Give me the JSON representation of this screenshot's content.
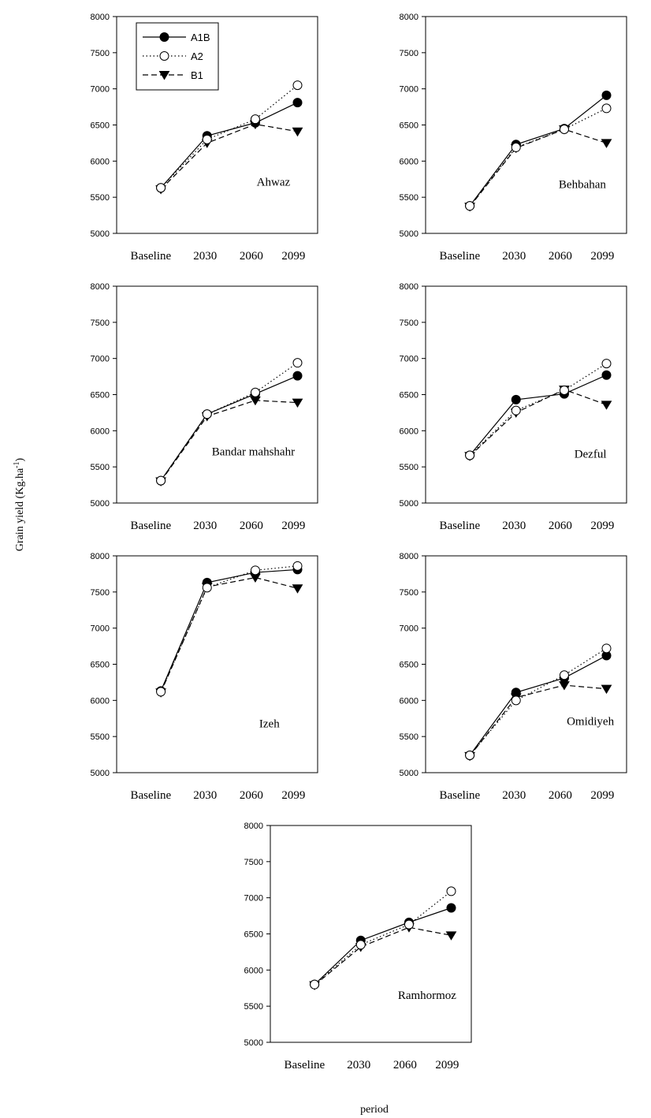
{
  "chart_data": {
    "type": "line",
    "ylabel": "Grain yield (Kg.ha-1)",
    "ylabel_main": "Grain yield (Kg.ha",
    "ylabel_sup": "-1",
    "ylabel_close": ")",
    "xlabel": "period",
    "categories": [
      "Baseline",
      "2030",
      "2060",
      "2099"
    ],
    "ylim": [
      5000,
      8000
    ],
    "yticks": [
      "5000",
      "5500",
      "6000",
      "6500",
      "7000",
      "7500",
      "8000"
    ],
    "grid": false,
    "legend": {
      "placement": "top-left of first panel",
      "entries": [
        {
          "name": "A1B",
          "marker": "filled-circle",
          "line": "solid",
          "color": "#000000"
        },
        {
          "name": "A2",
          "marker": "open-circle",
          "line": "dotted",
          "color": "#000000"
        },
        {
          "name": "B1",
          "marker": "filled-down-triangle",
          "line": "dashed",
          "color": "#000000"
        }
      ]
    },
    "panels": [
      {
        "location": "Ahwaz",
        "series": [
          {
            "name": "A1B",
            "values": [
              5630,
              6350,
              6530,
              6810
            ]
          },
          {
            "name": "A2",
            "values": [
              5630,
              6300,
              6580,
              7050
            ]
          },
          {
            "name": "B1",
            "values": [
              5610,
              6250,
              6510,
              6410
            ]
          }
        ]
      },
      {
        "location": "Behbahan",
        "series": [
          {
            "name": "A1B",
            "values": [
              5380,
              6230,
              6450,
              6910
            ]
          },
          {
            "name": "A2",
            "values": [
              5380,
              6190,
              6440,
              6730
            ]
          },
          {
            "name": "B1",
            "values": [
              5370,
              6180,
              6440,
              6250
            ]
          }
        ]
      },
      {
        "location": "Bandar mahshahr",
        "series": [
          {
            "name": "A1B",
            "values": [
              5310,
              6230,
              6510,
              6760
            ]
          },
          {
            "name": "A2",
            "values": [
              5310,
              6230,
              6530,
              6940
            ]
          },
          {
            "name": "B1",
            "values": [
              5300,
              6200,
              6420,
              6390
            ]
          }
        ]
      },
      {
        "location": "Dezful",
        "series": [
          {
            "name": "A1B",
            "values": [
              5660,
              6430,
              6510,
              6770
            ]
          },
          {
            "name": "A2",
            "values": [
              5660,
              6280,
              6560,
              6930
            ]
          },
          {
            "name": "B1",
            "values": [
              5650,
              6250,
              6570,
              6360
            ]
          }
        ]
      },
      {
        "location": "Izeh",
        "series": [
          {
            "name": "A1B",
            "values": [
              6130,
              7630,
              7770,
              7810
            ]
          },
          {
            "name": "A2",
            "values": [
              6120,
              7560,
              7800,
              7860
            ]
          },
          {
            "name": "B1",
            "values": [
              6110,
              7570,
              7700,
              7550
            ]
          }
        ]
      },
      {
        "location": "Omidiyeh",
        "series": [
          {
            "name": "A1B",
            "values": [
              5240,
              6110,
              6310,
              6620
            ]
          },
          {
            "name": "A2",
            "values": [
              5240,
              6000,
              6350,
              6720
            ]
          },
          {
            "name": "B1",
            "values": [
              5230,
              6040,
              6210,
              6160
            ]
          }
        ]
      },
      {
        "location": "Ramhormoz",
        "series": [
          {
            "name": "A1B",
            "values": [
              5800,
              6410,
              6660,
              6860
            ]
          },
          {
            "name": "A2",
            "values": [
              5800,
              6350,
              6630,
              7090
            ]
          },
          {
            "name": "B1",
            "values": [
              5790,
              6320,
              6590,
              6480
            ]
          }
        ]
      }
    ]
  }
}
